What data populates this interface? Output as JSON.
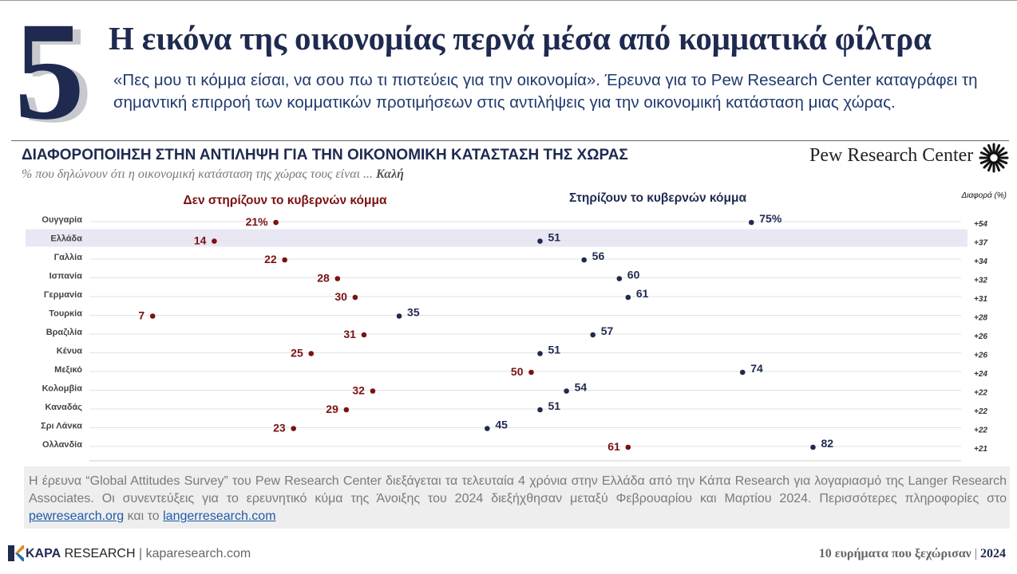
{
  "header": {
    "number": "5",
    "headline": "Η εικόνα της οικονομίας περνά μέσα από κομματικά φίλτρα",
    "lede": "«Πες μου τι κόμμα είσαι, να σου πω τι πιστεύεις για την οικονομία». Έρευνα για το Pew Research Center καταγράφει τη σημαντική επιρροή των κομματικών προτιμήσεων στις αντιλήψεις για την οικονομική κατάσταση μιας χώρας."
  },
  "pew_brand": "Pew Research Center",
  "chart_data": {
    "type": "scatter",
    "title": "ΔΙΑΦΟΡΟΠΟΙΗΣΗ ΣΤΗΝ ΑΝΤΙΛΗΨΗ ΓΙΑ ΤΗΝ ΟΙΚΟΝΟΜΙΚΗ ΚΑΤΑΣΤΑΣΗ ΤΗΣ ΧΩΡΑΣ",
    "subtitle_prefix": "% που δηλώνουν ότι η οικονομική κατάσταση της χώρας τους είναι ...",
    "subtitle_emphasis": "Καλή",
    "diff_header": "Διαφορά (%)",
    "xlim": [
      0,
      100
    ],
    "highlight_category": "Ελλάδα",
    "categories": [
      "Ουγγαρία",
      "Ελλάδα",
      "Γαλλία",
      "Ισπανία",
      "Γερμανία",
      "Τουρκία",
      "Βραζιλία",
      "Κένυα",
      "Μεξικό",
      "Κολομβία",
      "Καναδάς",
      "Σρι Λάνκα",
      "Ολλανδία"
    ],
    "series": [
      {
        "name": "Δεν στηρίζουν το κυβερνών κόμμα",
        "color": "#7b1113",
        "values": [
          21,
          14,
          22,
          28,
          30,
          7,
          31,
          25,
          50,
          32,
          29,
          23,
          61
        ]
      },
      {
        "name": "Στηρίζουν το κυβερνών κόμμα",
        "color": "#1f2a50",
        "values": [
          75,
          51,
          56,
          60,
          61,
          35,
          57,
          51,
          74,
          54,
          51,
          45,
          82
        ]
      }
    ],
    "differences": [
      "+54",
      "+37",
      "+34",
      "+32",
      "+31",
      "+28",
      "+26",
      "+26",
      "+24",
      "+22",
      "+22",
      "+22",
      "+21"
    ]
  },
  "footnote": {
    "text": "Η έρευνα “Global Attitudes Survey” του Pew Research Center διεξάγεται τα τελευταία 4 χρόνια στην Ελλάδα από την Κάπα Research για λογαριασμό της Langer Research Associates. Οι συνεντεύξεις για το ερευνητικό κύμα της Άνοιξης του 2024 διεξήχθησαν μεταξύ Φεβρουαρίου και Μαρτίου 2024. Περισσότερες πληροφορίες στο",
    "link1": "pewresearch.org",
    "connector": "και το",
    "link2": "langerresearch.com"
  },
  "footer": {
    "brand_bold": "KAPA",
    "brand_light": "RESEARCH",
    "separator": "|",
    "site": "kaparesearch.com",
    "right_text": "10 ευρήματα που ξεχώρισαν",
    "right_sep": "|",
    "year": "2024"
  }
}
